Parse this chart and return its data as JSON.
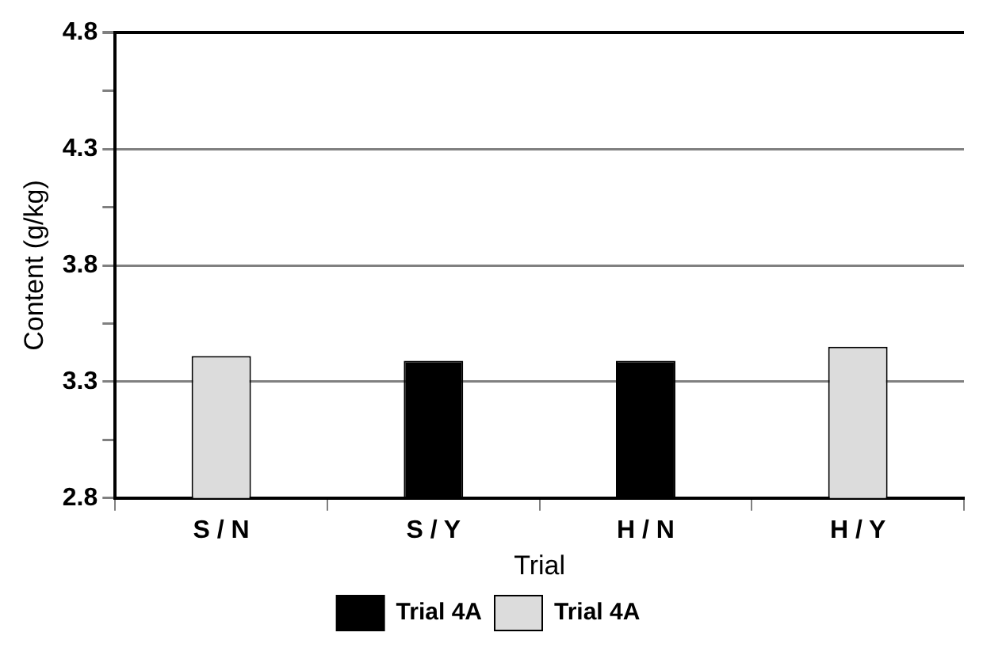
{
  "chart_data": {
    "type": "bar",
    "xlabel": "Trial",
    "ylabel": "Content (g/kg)",
    "categories": [
      "S / N",
      "S / Y",
      "H / N",
      "H / Y"
    ],
    "series": [
      {
        "name": "Trial 4A",
        "color": "#000000",
        "values": [
          null,
          3.39,
          3.39,
          null
        ]
      },
      {
        "name": "Trial 4A",
        "color": "#dcdcdc",
        "values": [
          3.41,
          null,
          null,
          3.45
        ]
      }
    ],
    "ylim": [
      2.8,
      4.8
    ],
    "yticks": [
      2.8,
      {
        "value": 3.05,
        "label": null
      },
      3.3,
      {
        "value": 3.55,
        "label": null
      },
      3.8,
      {
        "value": 4.05,
        "label": null
      },
      4.3,
      {
        "value": 4.55,
        "label": null
      },
      4.8
    ],
    "grid": "y",
    "legend": "bottom"
  }
}
